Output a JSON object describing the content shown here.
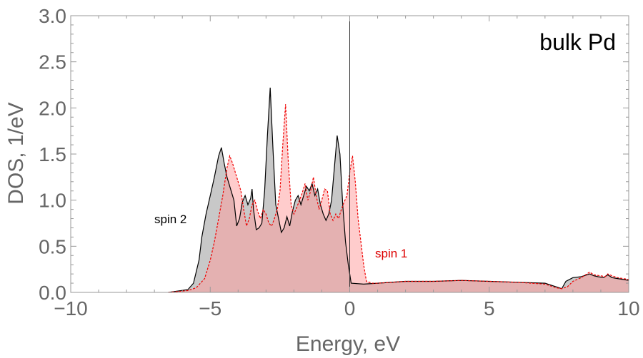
{
  "chart_data": {
    "type": "area",
    "title": "",
    "xlabel": "Energy, eV",
    "ylabel": "DOS, 1/eV",
    "xlim": [
      -10,
      10
    ],
    "ylim": [
      0,
      3.0
    ],
    "x_ticks": [
      "−10",
      "−5",
      "0",
      "5",
      "10"
    ],
    "y_ticks": [
      "0.0",
      "0.5",
      "1.0",
      "1.5",
      "2.0",
      "2.5",
      "3.0"
    ],
    "grid": false,
    "annotations": [
      {
        "text": "bulk Pd",
        "color": "#000000"
      },
      {
        "text": "spin 2",
        "color": "#000000"
      },
      {
        "text": "spin 1",
        "color": "#dd0000"
      }
    ],
    "series": [
      {
        "name": "spin 2",
        "style": "solid black line, grey fill",
        "line_color": "#000000",
        "fill_color": "#aaaaaa",
        "points": [
          [
            -6.5,
            0.0
          ],
          [
            -5.8,
            0.03
          ],
          [
            -5.6,
            0.1
          ],
          [
            -5.4,
            0.35
          ],
          [
            -5.3,
            0.6
          ],
          [
            -5.15,
            0.85
          ],
          [
            -5.0,
            1.05
          ],
          [
            -4.85,
            1.25
          ],
          [
            -4.7,
            1.48
          ],
          [
            -4.6,
            1.57
          ],
          [
            -4.5,
            1.4
          ],
          [
            -4.4,
            1.25
          ],
          [
            -4.3,
            1.15
          ],
          [
            -4.15,
            1.0
          ],
          [
            -4.05,
            0.72
          ],
          [
            -3.95,
            0.8
          ],
          [
            -3.85,
            0.98
          ],
          [
            -3.75,
            1.05
          ],
          [
            -3.65,
            0.95
          ],
          [
            -3.55,
            1.02
          ],
          [
            -3.5,
            1.12
          ],
          [
            -3.45,
            0.9
          ],
          [
            -3.35,
            0.68
          ],
          [
            -3.25,
            0.7
          ],
          [
            -3.15,
            0.75
          ],
          [
            -3.05,
            1.1
          ],
          [
            -2.95,
            1.7
          ],
          [
            -2.85,
            2.22
          ],
          [
            -2.75,
            1.55
          ],
          [
            -2.65,
            0.95
          ],
          [
            -2.55,
            0.8
          ],
          [
            -2.45,
            0.65
          ],
          [
            -2.35,
            0.7
          ],
          [
            -2.25,
            0.82
          ],
          [
            -2.15,
            0.72
          ],
          [
            -2.05,
            0.88
          ],
          [
            -1.95,
            1.0
          ],
          [
            -1.85,
            1.05
          ],
          [
            -1.75,
            0.95
          ],
          [
            -1.65,
            1.05
          ],
          [
            -1.55,
            1.15
          ],
          [
            -1.45,
            1.1
          ],
          [
            -1.35,
            1.18
          ],
          [
            -1.25,
            1.05
          ],
          [
            -1.15,
            1.12
          ],
          [
            -1.05,
            0.95
          ],
          [
            -0.95,
            0.85
          ],
          [
            -0.85,
            0.78
          ],
          [
            -0.75,
            0.85
          ],
          [
            -0.65,
            1.0
          ],
          [
            -0.55,
            1.35
          ],
          [
            -0.45,
            1.7
          ],
          [
            -0.35,
            1.5
          ],
          [
            -0.25,
            0.95
          ],
          [
            -0.15,
            0.55
          ],
          [
            -0.05,
            0.3
          ],
          [
            0.05,
            0.1
          ],
          [
            0.5,
            0.09
          ],
          [
            1.0,
            0.1
          ],
          [
            2.0,
            0.12
          ],
          [
            3.0,
            0.12
          ],
          [
            4.0,
            0.13
          ],
          [
            5.0,
            0.12
          ],
          [
            6.0,
            0.11
          ],
          [
            7.0,
            0.1
          ],
          [
            7.4,
            0.06
          ],
          [
            7.6,
            0.04
          ],
          [
            7.75,
            0.12
          ],
          [
            8.0,
            0.16
          ],
          [
            8.3,
            0.17
          ],
          [
            8.6,
            0.2
          ],
          [
            8.75,
            0.18
          ],
          [
            8.9,
            0.17
          ],
          [
            9.1,
            0.16
          ],
          [
            9.25,
            0.19
          ],
          [
            9.4,
            0.16
          ],
          [
            9.6,
            0.15
          ],
          [
            9.8,
            0.14
          ],
          [
            10.0,
            0.13
          ]
        ]
      },
      {
        "name": "spin 1",
        "style": "dashed red line, pink fill",
        "line_color": "#ee0000",
        "fill_color": "#ff9999",
        "points": [
          [
            -6.5,
            0.0
          ],
          [
            -5.8,
            0.02
          ],
          [
            -5.5,
            0.05
          ],
          [
            -5.2,
            0.15
          ],
          [
            -5.0,
            0.35
          ],
          [
            -4.85,
            0.55
          ],
          [
            -4.7,
            0.8
          ],
          [
            -4.55,
            1.05
          ],
          [
            -4.4,
            1.35
          ],
          [
            -4.3,
            1.48
          ],
          [
            -4.2,
            1.4
          ],
          [
            -4.1,
            1.3
          ],
          [
            -4.0,
            1.2
          ],
          [
            -3.9,
            1.1
          ],
          [
            -3.8,
            0.9
          ],
          [
            -3.7,
            0.72
          ],
          [
            -3.6,
            0.8
          ],
          [
            -3.5,
            0.95
          ],
          [
            -3.4,
            1.0
          ],
          [
            -3.3,
            0.88
          ],
          [
            -3.2,
            0.8
          ],
          [
            -3.1,
            0.9
          ],
          [
            -3.0,
            0.85
          ],
          [
            -2.9,
            0.75
          ],
          [
            -2.8,
            0.72
          ],
          [
            -2.7,
            0.8
          ],
          [
            -2.6,
            0.9
          ],
          [
            -2.5,
            1.1
          ],
          [
            -2.4,
            1.6
          ],
          [
            -2.3,
            2.04
          ],
          [
            -2.2,
            1.4
          ],
          [
            -2.1,
            0.95
          ],
          [
            -2.0,
            0.85
          ],
          [
            -1.9,
            0.92
          ],
          [
            -1.8,
            1.0
          ],
          [
            -1.7,
            1.08
          ],
          [
            -1.6,
            1.18
          ],
          [
            -1.5,
            1.0
          ],
          [
            -1.4,
            1.1
          ],
          [
            -1.3,
            1.25
          ],
          [
            -1.2,
            1.05
          ],
          [
            -1.1,
            0.9
          ],
          [
            -1.0,
            1.0
          ],
          [
            -0.9,
            1.12
          ],
          [
            -0.8,
            1.1
          ],
          [
            -0.7,
            0.85
          ],
          [
            -0.6,
            0.78
          ],
          [
            -0.5,
            0.85
          ],
          [
            -0.4,
            0.8
          ],
          [
            -0.3,
            0.9
          ],
          [
            -0.2,
            0.98
          ],
          [
            -0.1,
            1.05
          ],
          [
            0.0,
            1.3
          ],
          [
            0.1,
            1.48
          ],
          [
            0.2,
            1.2
          ],
          [
            0.3,
            0.8
          ],
          [
            0.4,
            0.55
          ],
          [
            0.5,
            0.3
          ],
          [
            0.6,
            0.12
          ],
          [
            0.8,
            0.1
          ],
          [
            1.0,
            0.1
          ],
          [
            2.0,
            0.12
          ],
          [
            3.0,
            0.12
          ],
          [
            4.0,
            0.13
          ],
          [
            5.0,
            0.12
          ],
          [
            6.0,
            0.11
          ],
          [
            7.0,
            0.09
          ],
          [
            7.4,
            0.05
          ],
          [
            7.6,
            0.04
          ],
          [
            7.8,
            0.06
          ],
          [
            8.0,
            0.12
          ],
          [
            8.3,
            0.16
          ],
          [
            8.5,
            0.2
          ],
          [
            8.6,
            0.22
          ],
          [
            8.75,
            0.19
          ],
          [
            9.0,
            0.18
          ],
          [
            9.15,
            0.17
          ],
          [
            9.25,
            0.2
          ],
          [
            9.4,
            0.18
          ],
          [
            9.6,
            0.16
          ],
          [
            9.8,
            0.15
          ],
          [
            10.0,
            0.14
          ]
        ]
      }
    ]
  }
}
